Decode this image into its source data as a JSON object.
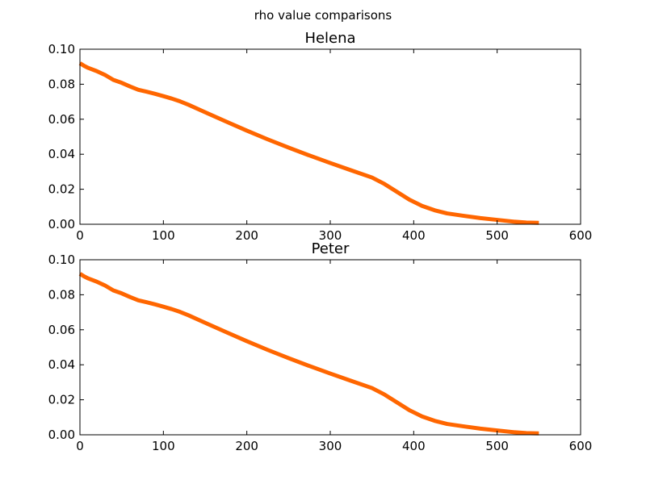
{
  "figure": {
    "suptitle": "rho value comparisons"
  },
  "chart_data": [
    {
      "type": "line",
      "title": "Helena",
      "xlabel": "",
      "ylabel": "",
      "xlim": [
        0,
        600
      ],
      "ylim": [
        0,
        0.1
      ],
      "xticks": [
        "0",
        "100",
        "200",
        "300",
        "400",
        "500",
        "600"
      ],
      "yticks": [
        "0.00",
        "0.02",
        "0.04",
        "0.06",
        "0.08",
        "0.10"
      ],
      "grid": false,
      "color": "#ff6600",
      "series": [
        {
          "x": [
            0,
            5,
            10,
            20,
            30,
            40,
            50,
            60,
            70,
            80,
            90,
            100,
            110,
            120,
            130,
            150,
            175,
            200,
            225,
            250,
            275,
            300,
            325,
            350,
            365,
            380,
            395,
            410,
            425,
            440,
            460,
            480,
            500,
            520,
            535,
            550
          ],
          "y": [
            0.092,
            0.0905,
            0.0893,
            0.0875,
            0.0853,
            0.0825,
            0.0808,
            0.0787,
            0.0768,
            0.0757,
            0.0745,
            0.0732,
            0.0718,
            0.0702,
            0.0683,
            0.064,
            0.0587,
            0.0535,
            0.0485,
            0.0438,
            0.0393,
            0.035,
            0.0308,
            0.0267,
            0.023,
            0.0185,
            0.014,
            0.0105,
            0.008,
            0.0062,
            0.0048,
            0.0035,
            0.0025,
            0.0015,
            0.001,
            0.0008
          ]
        }
      ]
    },
    {
      "type": "line",
      "title": "Peter",
      "xlabel": "",
      "ylabel": "",
      "xlim": [
        0,
        600
      ],
      "ylim": [
        0,
        0.1
      ],
      "xticks": [
        "0",
        "100",
        "200",
        "300",
        "400",
        "500",
        "600"
      ],
      "yticks": [
        "0.00",
        "0.02",
        "0.04",
        "0.06",
        "0.08",
        "0.10"
      ],
      "grid": false,
      "color": "#ff6600",
      "series": [
        {
          "x": [
            0,
            5,
            10,
            20,
            30,
            40,
            50,
            60,
            70,
            80,
            90,
            100,
            110,
            120,
            130,
            150,
            175,
            200,
            225,
            250,
            275,
            300,
            325,
            350,
            365,
            380,
            395,
            410,
            425,
            440,
            460,
            480,
            500,
            520,
            535,
            550
          ],
          "y": [
            0.092,
            0.0905,
            0.0893,
            0.0875,
            0.0853,
            0.0825,
            0.0808,
            0.0787,
            0.0768,
            0.0757,
            0.0745,
            0.0732,
            0.0718,
            0.0702,
            0.0683,
            0.064,
            0.0587,
            0.0535,
            0.0485,
            0.0438,
            0.0393,
            0.035,
            0.0308,
            0.0267,
            0.023,
            0.0185,
            0.014,
            0.0105,
            0.008,
            0.0062,
            0.0048,
            0.0035,
            0.0025,
            0.0015,
            0.001,
            0.0008
          ]
        }
      ]
    }
  ]
}
